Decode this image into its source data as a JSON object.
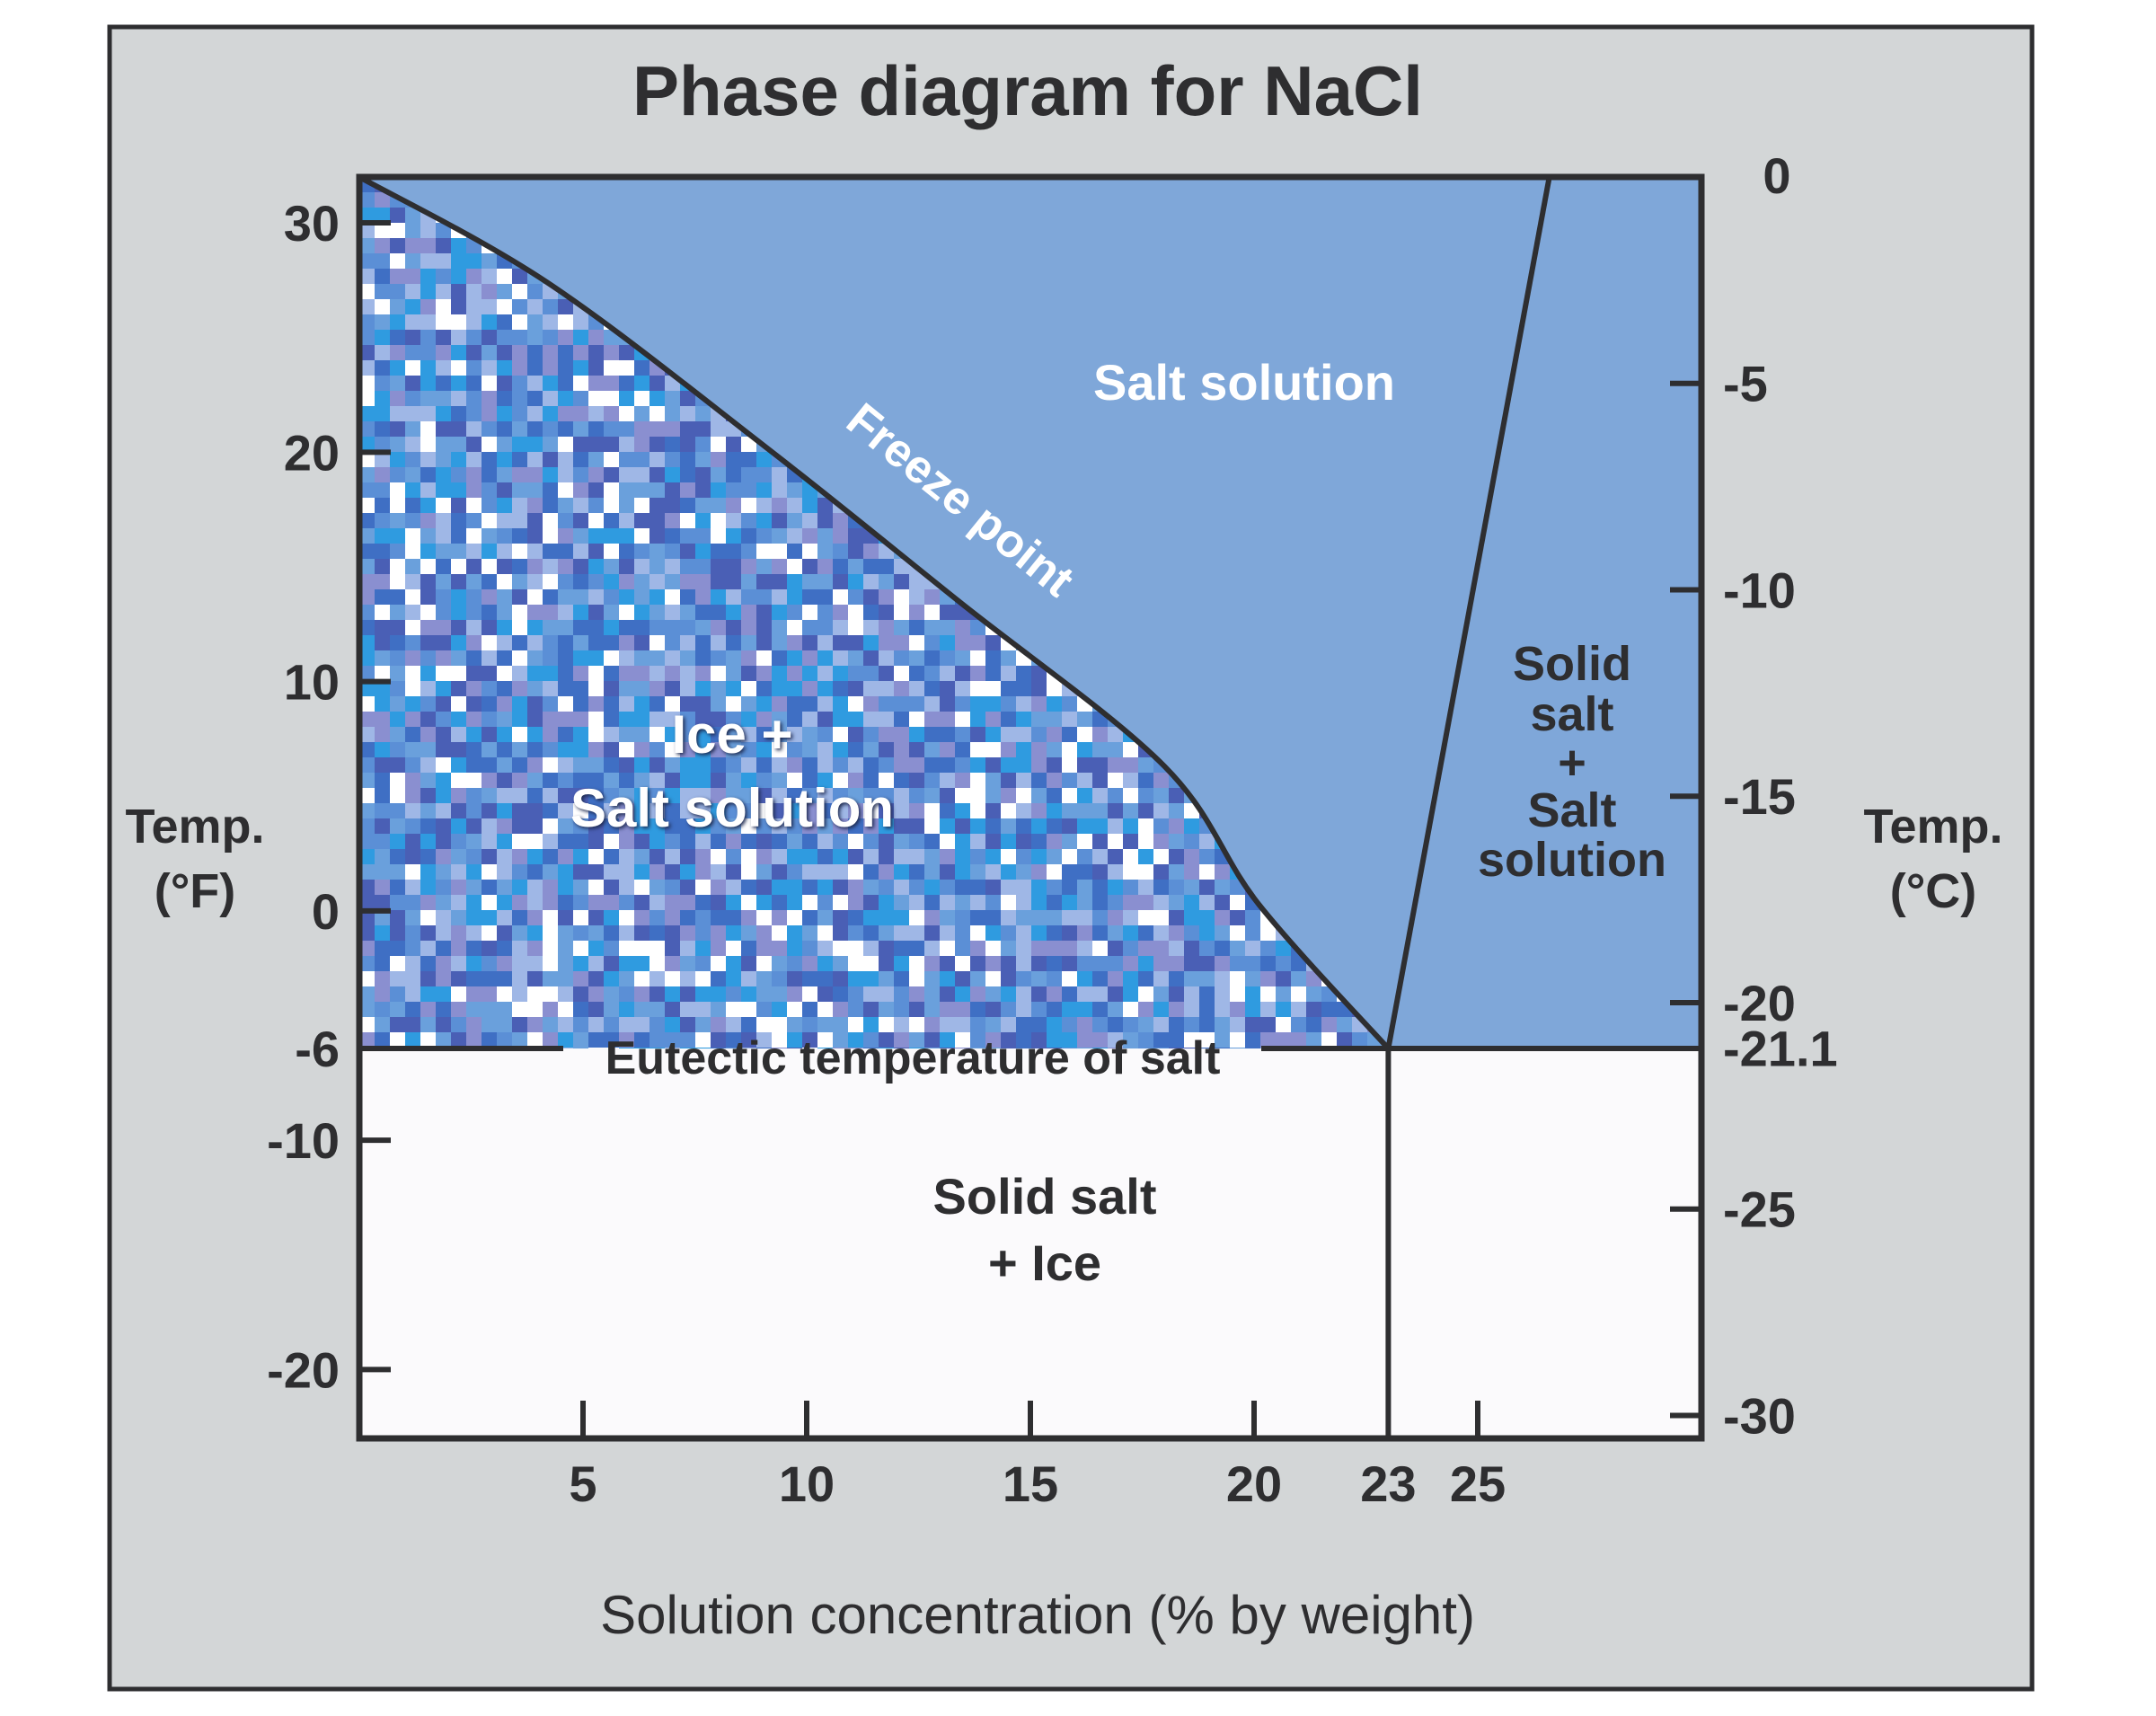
{
  "chart_data": {
    "type": "line",
    "title": "Phase diagram for NaCl",
    "xlabel": "Solution concentration (% by weight)",
    "ylabel_left": [
      "Temp.",
      "(°F)"
    ],
    "ylabel_right": [
      "Temp.",
      "(°C)"
    ],
    "xlim": [
      0,
      30
    ],
    "ylim_F": [
      -23,
      32
    ],
    "ylim_C": [
      -30.6,
      0
    ],
    "x_ticks": [
      5,
      10,
      15,
      20,
      23,
      25
    ],
    "x_tick_labels": [
      "5",
      "10",
      "15",
      "20",
      "23",
      "25"
    ],
    "yF_ticks": [
      30,
      20,
      10,
      0,
      -6,
      -10,
      -20
    ],
    "yF_tick_labels": [
      "30",
      "20",
      "10",
      "0",
      "-6",
      "-10",
      "-20"
    ],
    "yC_ticks": [
      0,
      -5,
      -10,
      -15,
      -20,
      -21.1,
      -25,
      -30
    ],
    "yC_tick_labels": [
      "0",
      "-5",
      "-10",
      "-15",
      "-20",
      "-21.1",
      "-25",
      "-30"
    ],
    "grid": false,
    "series": [
      {
        "name": "Freeze point",
        "x": [
          0,
          4.2,
          9.1,
          13.4,
          18.0,
          20.1,
          23
        ],
        "y_F": [
          32,
          27.4,
          20.2,
          13.5,
          6.3,
          0.3,
          -6
        ]
      },
      {
        "x": [
          23,
          26.6
        ],
        "y_F": [
          -6,
          32
        ]
      },
      {
        "x": [
          0,
          30
        ],
        "y_F": [
          -6,
          -6
        ]
      },
      {
        "x": [
          23,
          23
        ],
        "y_F": [
          -6,
          -23
        ]
      }
    ],
    "regions": {
      "salt_solution": "Salt solution",
      "ice_salt_solution": [
        "Ice +",
        "Salt solution"
      ],
      "solid_salt_salt_solution": [
        "Solid",
        "salt",
        "+",
        "Salt",
        "solution"
      ],
      "solid_salt_ice": [
        "Solid salt",
        "+ Ice"
      ]
    },
    "annotations": {
      "freeze_point": "Freeze point",
      "eutectic": "Eutectic temperature of salt"
    },
    "colors": {
      "frame_background": "#d3d6d7",
      "salt_solution": "#7fa7d9",
      "solid_salt_ice": "#fbfafc",
      "lines": "#2e2e30",
      "ice_texture": [
        "#3f6fc4",
        "#5b8fd6",
        "#2f9be0",
        "#8a8fd0",
        "#ffffff",
        "#6aa0dc",
        "#4a5fb5",
        "#9fb7e6"
      ]
    }
  }
}
